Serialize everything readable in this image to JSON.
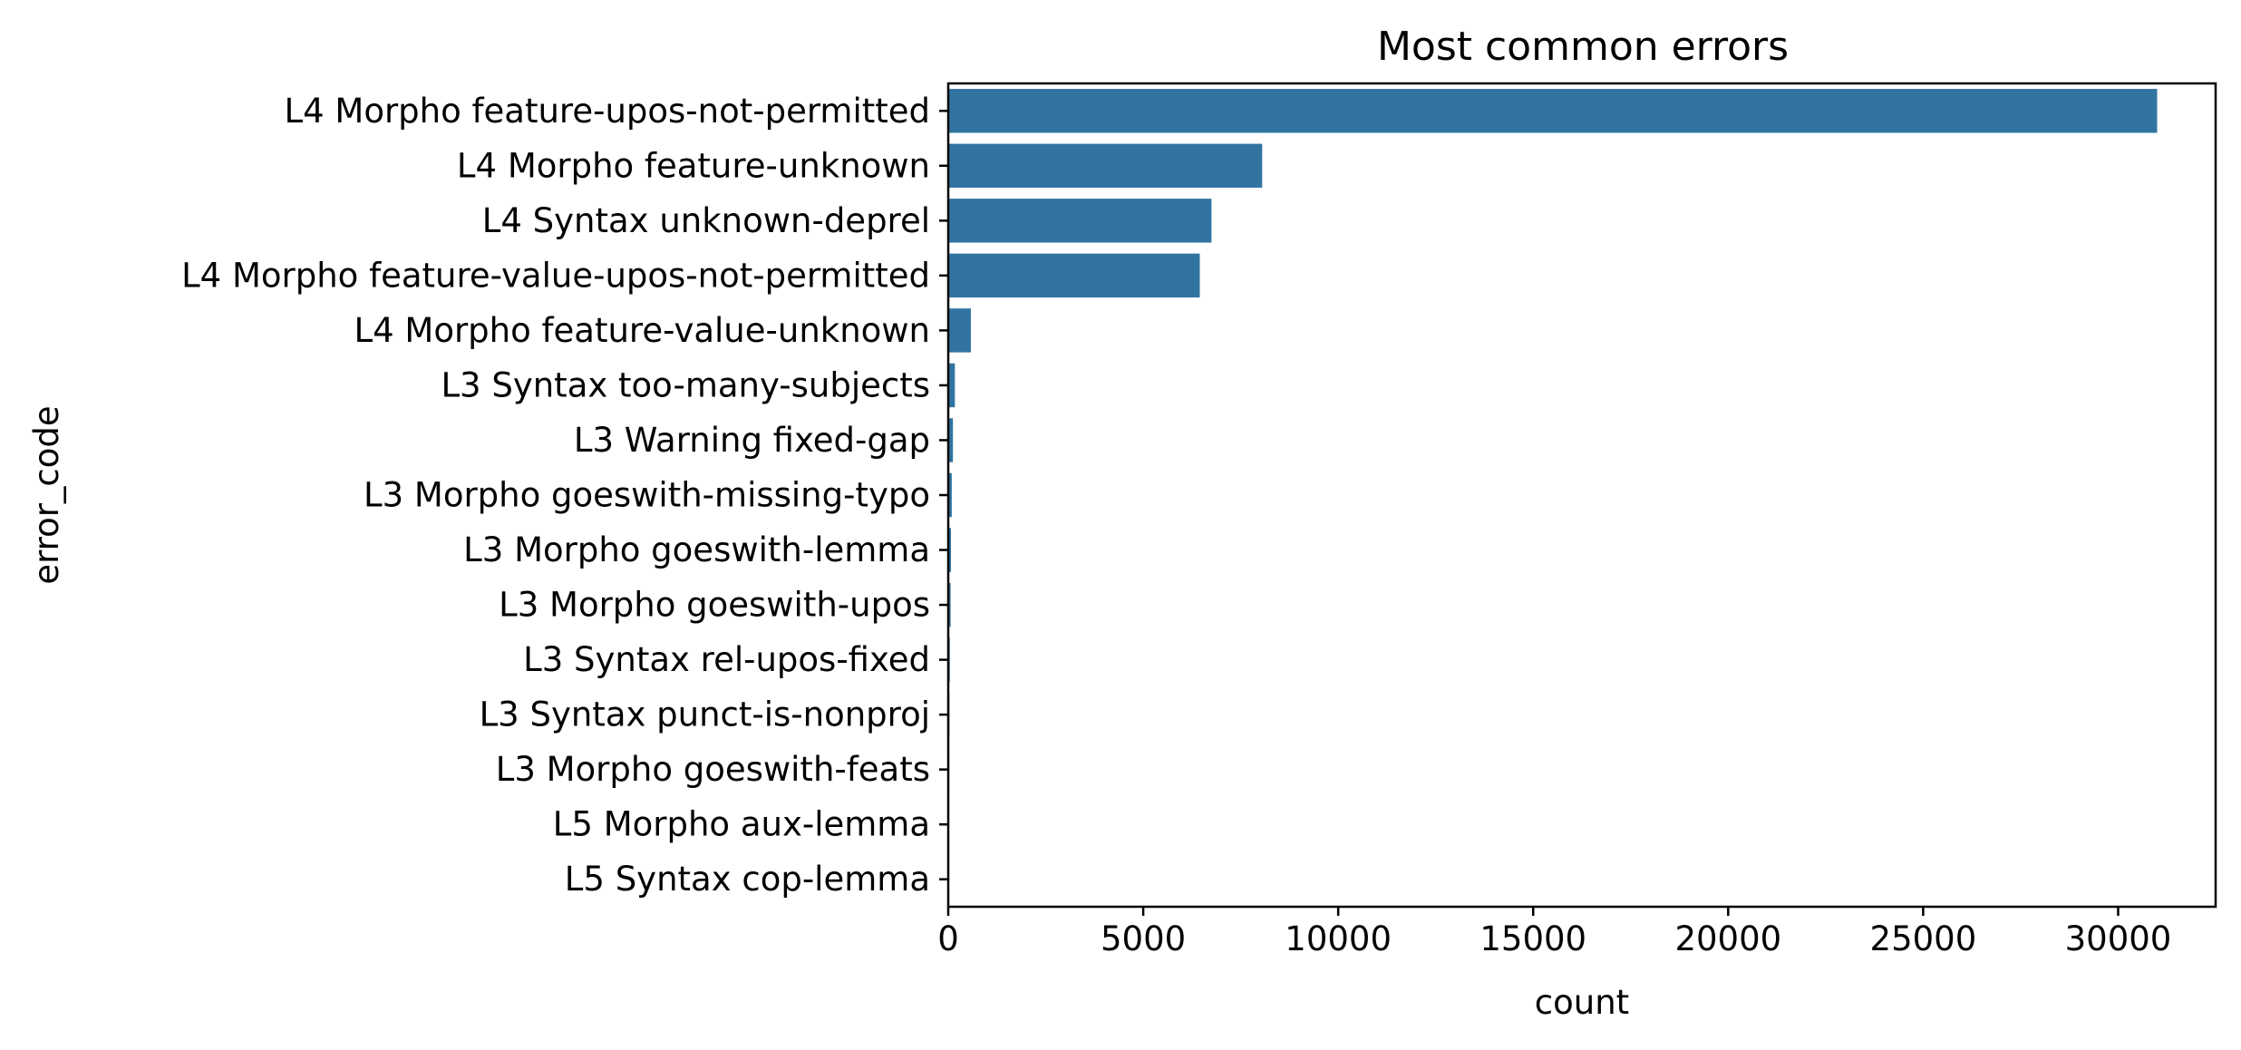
{
  "chart_data": {
    "type": "bar",
    "orientation": "horizontal",
    "title": "Most common errors",
    "xlabel": "count",
    "ylabel": "error_code",
    "xlim": [
      0,
      32500
    ],
    "xticks": [
      "0",
      "5000",
      "10000",
      "15000",
      "20000",
      "25000",
      "30000"
    ],
    "grid": false,
    "bar_color": "#3274a1",
    "categories": [
      "L4 Morpho feature-upos-not-permitted",
      "L4 Morpho feature-unknown",
      "L4 Syntax unknown-deprel",
      "L4 Morpho feature-value-upos-not-permitted",
      "L4 Morpho feature-value-unknown",
      "L3 Syntax too-many-subjects",
      "L3 Warning fixed-gap",
      "L3 Morpho goeswith-missing-typo",
      "L3 Morpho goeswith-lemma",
      "L3 Morpho goeswith-upos",
      "L3 Syntax rel-upos-fixed",
      "L3 Syntax punct-is-nonproj",
      "L3 Morpho goeswith-feats",
      "L5 Morpho aux-lemma",
      "L5 Syntax cop-lemma"
    ],
    "values": [
      31000,
      8050,
      6750,
      6450,
      580,
      170,
      120,
      90,
      70,
      60,
      40,
      30,
      25,
      15,
      10
    ]
  }
}
